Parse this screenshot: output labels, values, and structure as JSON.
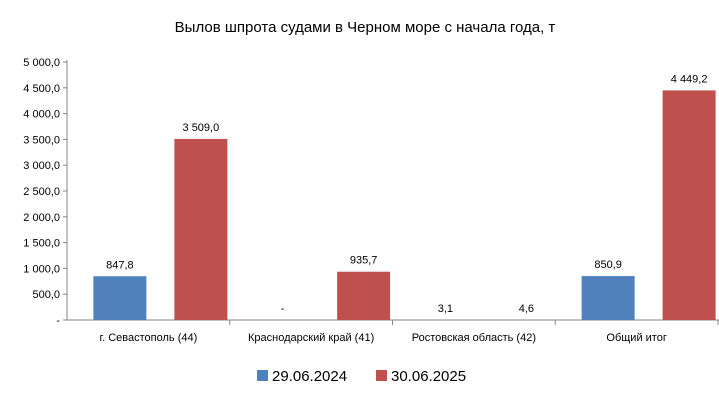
{
  "chart_data": {
    "type": "bar",
    "title": "Вылов шпрота судами в Черном море с начала  года, т",
    "categories": [
      "г. Севастополь (44)",
      "Краснодарский край (41)",
      "Ростовская область (42)",
      "Общий итог"
    ],
    "series": [
      {
        "name": "29.06.2024",
        "color": "#4f81bd",
        "values": [
          847.8,
          null,
          3.1,
          850.9
        ],
        "labels": [
          "847,8",
          "-",
          "3,1",
          "850,9"
        ]
      },
      {
        "name": "30.06.2025",
        "color": "#c0504d",
        "values": [
          3509.0,
          935.7,
          4.6,
          4449.2
        ],
        "labels": [
          "3 509,0",
          "935,7",
          "4,6",
          "4 449,2"
        ]
      }
    ],
    "ylim": [
      0,
      5000
    ],
    "yticks": [
      0,
      500,
      1000,
      1500,
      2000,
      2500,
      3000,
      3500,
      4000,
      4500,
      5000
    ],
    "ytick_labels": [
      "-",
      "500,0",
      "1 000,0",
      "1 500,0",
      "2 000,0",
      "2 500,0",
      "3 000,0",
      "3 500,0",
      "4 000,0",
      "4 500,0",
      "5 000,0"
    ],
    "grid": false,
    "legend_position": "bottom"
  }
}
